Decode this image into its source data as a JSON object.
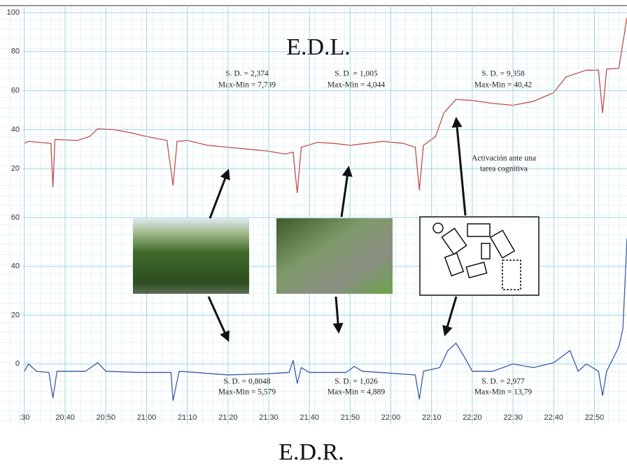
{
  "chart_data": [
    {
      "type": "line",
      "title": "E.D.L.",
      "color": "#c0504d",
      "x": [
        1230,
        1231,
        1236.5,
        1237,
        1237.5,
        1243,
        1246,
        1248,
        1252,
        1256,
        1260,
        1265,
        1266.5,
        1267.5,
        1270,
        1275,
        1280,
        1285,
        1290,
        1294,
        1296,
        1297,
        1298,
        1302,
        1306,
        1310,
        1314,
        1318,
        1323,
        1326,
        1327,
        1328,
        1331,
        1333,
        1336,
        1340,
        1345,
        1350,
        1355,
        1360,
        1363,
        1368,
        1371,
        1372,
        1373,
        1376,
        1378
      ],
      "values": [
        33,
        34,
        33,
        10.5,
        35,
        34.5,
        36.5,
        40.5,
        40,
        38.5,
        36.5,
        34.5,
        11.5,
        34,
        34.5,
        32,
        31,
        30,
        29,
        27.5,
        28.5,
        7.5,
        31,
        33.5,
        33,
        32,
        33,
        34,
        33,
        31,
        9,
        32,
        36.5,
        48.5,
        55.5,
        55,
        53.5,
        52.5,
        54.5,
        59,
        67,
        70.5,
        70.5,
        48.5,
        71,
        71.5,
        97.5
      ],
      "xlim": [
        1229.5,
        1378
      ],
      "ylim": [
        0,
        100
      ],
      "yticks": [
        20,
        40,
        60,
        80,
        100
      ],
      "grid": true,
      "annotations": [
        "S. D. = 2,374",
        "Max-Min = 7,739",
        "S. D. = 1,005",
        "Max-Min = 4,044",
        "S. D. = 9,358",
        "Max-Min = 40,42",
        "Activación ante una",
        "tarea cognitiva"
      ]
    },
    {
      "type": "line",
      "title": "E.D.R.",
      "color": "#3b5ba5",
      "x": [
        1230,
        1231,
        1233,
        1236,
        1237,
        1238,
        1245,
        1248,
        1250,
        1258,
        1266,
        1266.5,
        1268,
        1280,
        1290,
        1295,
        1296,
        1297,
        1298,
        1300,
        1309,
        1311,
        1313,
        1326,
        1327,
        1328,
        1332,
        1334,
        1336,
        1338,
        1340,
        1345,
        1350,
        1355,
        1360,
        1364,
        1366,
        1368,
        1371,
        1372,
        1373,
        1376,
        1377,
        1378
      ],
      "values": [
        -3,
        0,
        -3,
        -3.5,
        -14,
        -3,
        -3,
        0.5,
        -3,
        -3.5,
        -3.5,
        -15,
        -3,
        -4.5,
        -4,
        -3.5,
        1.5,
        -8,
        -1.5,
        -3.5,
        -3.5,
        -1,
        -3,
        -4.5,
        -14.5,
        -3,
        -1.5,
        5.5,
        8.5,
        3,
        -3,
        -3,
        0,
        -1.5,
        0.5,
        5.5,
        -3,
        0,
        -3,
        -13,
        -3,
        7,
        14.5,
        51.5
      ],
      "xlim": [
        1229.5,
        1378
      ],
      "ylim": [
        -20,
        60
      ],
      "yticks": [
        0,
        20,
        40,
        60
      ],
      "grid": true,
      "xticks": [
        {
          "value": 1230,
          "label": ":30"
        },
        {
          "value": 1240,
          "label": "20:40"
        },
        {
          "value": 1250,
          "label": "20:50"
        },
        {
          "value": 1260,
          "label": "21:00"
        },
        {
          "value": 1270,
          "label": "21:10"
        },
        {
          "value": 1280,
          "label": "21:20"
        },
        {
          "value": 1290,
          "label": "21:30"
        },
        {
          "value": 1300,
          "label": "21:40"
        },
        {
          "value": 1310,
          "label": "21:50"
        },
        {
          "value": 1320,
          "label": "22:00"
        },
        {
          "value": 1330,
          "label": "22:10"
        },
        {
          "value": 1340,
          "label": "22:20"
        },
        {
          "value": 1350,
          "label": "22:30"
        },
        {
          "value": 1360,
          "label": "22:40"
        },
        {
          "value": 1370,
          "label": "22:50"
        }
      ],
      "annotations": [
        "S. D. = 0,8048",
        "Max-Min = 5,579",
        "S. D. = 1,026",
        "Max-Min = 4,889",
        "S. D. = 2,977",
        "Max-Min = 13,79"
      ]
    }
  ]
}
